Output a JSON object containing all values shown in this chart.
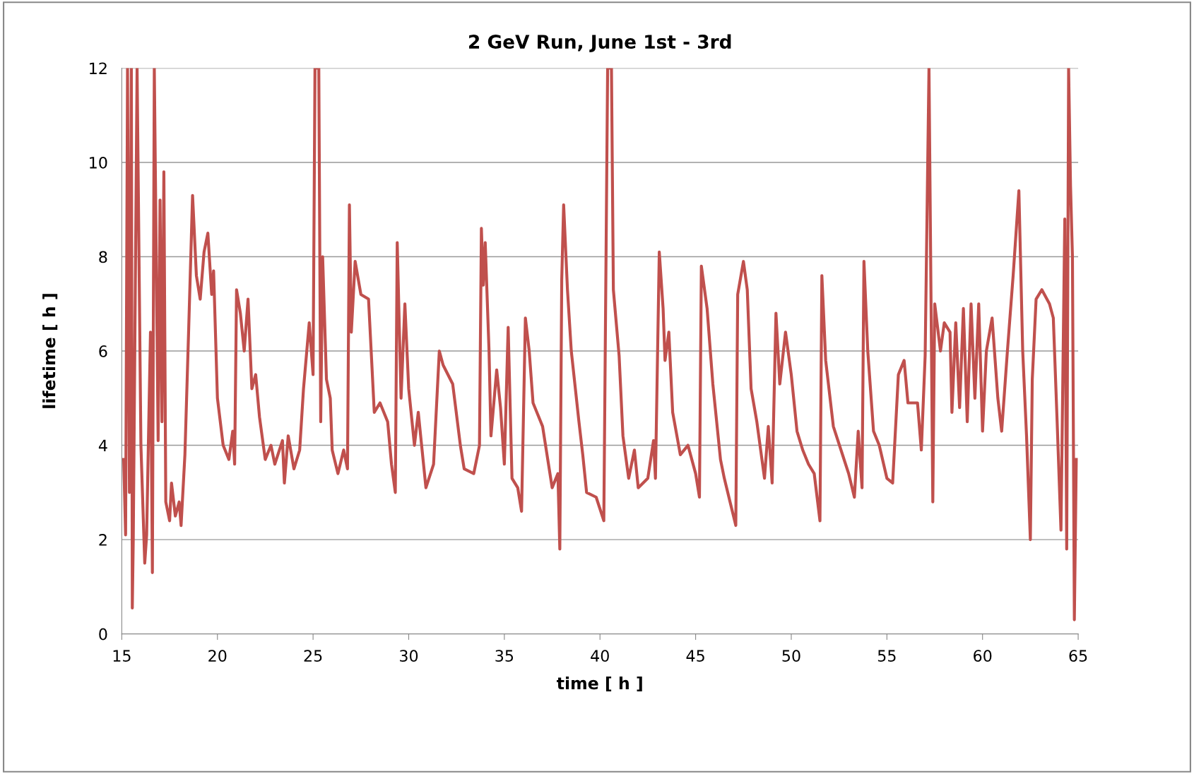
{
  "chart_data": {
    "type": "line",
    "title": "2 GeV Run, June 1st - 3rd",
    "xlabel": "time [ h ]",
    "ylabel": "lifetime [ h ]",
    "xlim": [
      15,
      65
    ],
    "ylim": [
      0,
      12
    ],
    "xticks": [
      15,
      20,
      25,
      30,
      35,
      40,
      45,
      50,
      55,
      60,
      65
    ],
    "yticks": [
      0,
      2,
      4,
      6,
      8,
      10,
      12
    ],
    "grid": "y",
    "legend": false,
    "marker": "none",
    "line_style": "solid",
    "series": [
      {
        "color": "#c0504d",
        "x": [
          15.1,
          15.2,
          15.3,
          15.4,
          15.5,
          15.55,
          15.6,
          15.8,
          16.0,
          16.2,
          16.3,
          16.5,
          16.6,
          16.7,
          16.9,
          17.0,
          17.1,
          17.2,
          17.3,
          17.5,
          17.6,
          17.8,
          18.0,
          18.1,
          18.3,
          18.5,
          18.7,
          18.9,
          19.1,
          19.3,
          19.5,
          19.7,
          19.8,
          20.0,
          20.3,
          20.6,
          20.8,
          20.9,
          21.0,
          21.2,
          21.4,
          21.6,
          21.8,
          22.0,
          22.2,
          22.5,
          22.8,
          23.0,
          23.4,
          23.5,
          23.7,
          24.0,
          24.3,
          24.5,
          24.8,
          25.0,
          25.1,
          25.3,
          25.4,
          25.5,
          25.7,
          25.9,
          26.0,
          26.3,
          26.6,
          26.8,
          26.9,
          27.0,
          27.2,
          27.5,
          27.9,
          28.0,
          28.2,
          28.5,
          28.9,
          29.1,
          29.3,
          29.4,
          29.6,
          29.8,
          30.0,
          30.3,
          30.5,
          30.7,
          30.9,
          31.3,
          31.6,
          31.8,
          32.3,
          32.7,
          32.9,
          33.4,
          33.7,
          33.8,
          33.9,
          34.0,
          34.2,
          34.3,
          34.6,
          34.8,
          35.0,
          35.2,
          35.4,
          35.7,
          35.9,
          36.1,
          36.3,
          36.5,
          37.0,
          37.5,
          37.8,
          37.9,
          38.0,
          38.1,
          38.3,
          38.5,
          38.9,
          39.1,
          39.3,
          39.8,
          40.2,
          40.4,
          40.6,
          40.7,
          41.0,
          41.2,
          41.5,
          41.8,
          42.0,
          42.5,
          42.8,
          42.9,
          43.1,
          43.3,
          43.4,
          43.6,
          43.8,
          44.2,
          44.6,
          45.0,
          45.2,
          45.3,
          45.6,
          45.9,
          46.3,
          46.5,
          46.8,
          47.1,
          47.2,
          47.5,
          47.7,
          47.9,
          48.2,
          48.6,
          48.8,
          49.0,
          49.2,
          49.4,
          49.7,
          50.0,
          50.3,
          50.6,
          50.9,
          51.2,
          51.5,
          51.6,
          51.8,
          52.2,
          52.6,
          53.0,
          53.3,
          53.5,
          53.7,
          53.8,
          54.0,
          54.3,
          54.6,
          55.0,
          55.3,
          55.6,
          55.9,
          56.1,
          56.6,
          56.8,
          57.0,
          57.2,
          57.4,
          57.5,
          57.8,
          58.0,
          58.3,
          58.4,
          58.6,
          58.8,
          59.0,
          59.2,
          59.4,
          59.6,
          59.8,
          60.0,
          60.2,
          60.5,
          60.8,
          61.0,
          61.3,
          61.6,
          61.9,
          62.1,
          62.3,
          62.5,
          62.6,
          62.8,
          63.1,
          63.5,
          63.7,
          63.9,
          64.1,
          64.3,
          64.4,
          64.5,
          64.6,
          64.7,
          64.8,
          64.9
        ],
        "values": [
          3.7,
          2.1,
          12,
          3.0,
          12,
          0.55,
          2.0,
          12,
          4.0,
          1.5,
          2.1,
          6.4,
          1.3,
          12,
          4.1,
          9.2,
          4.5,
          9.8,
          2.8,
          2.4,
          3.2,
          2.5,
          2.8,
          2.3,
          3.8,
          6.5,
          9.3,
          7.6,
          7.1,
          8.1,
          8.5,
          7.2,
          7.7,
          5.0,
          4.0,
          3.7,
          4.3,
          3.6,
          7.3,
          6.8,
          6.0,
          7.1,
          5.2,
          5.5,
          4.6,
          3.7,
          4.0,
          3.6,
          4.1,
          3.2,
          4.2,
          3.5,
          3.9,
          5.2,
          6.6,
          5.5,
          12,
          12,
          4.5,
          8.0,
          5.4,
          5.0,
          3.9,
          3.4,
          3.9,
          3.5,
          9.1,
          6.4,
          7.9,
          7.2,
          7.1,
          6.3,
          4.7,
          4.9,
          4.5,
          3.6,
          3.0,
          8.3,
          5.0,
          7.0,
          5.2,
          4.0,
          4.7,
          3.9,
          3.1,
          3.6,
          6.0,
          5.7,
          5.3,
          4.0,
          3.5,
          3.4,
          4.0,
          8.6,
          7.4,
          8.3,
          6.0,
          4.2,
          5.6,
          4.8,
          3.6,
          6.5,
          3.3,
          3.1,
          2.6,
          6.7,
          6.0,
          4.9,
          4.4,
          3.1,
          3.4,
          1.8,
          7.5,
          9.1,
          7.3,
          6.0,
          4.5,
          3.8,
          3.0,
          2.9,
          2.4,
          12,
          12,
          7.3,
          5.9,
          4.2,
          3.3,
          3.9,
          3.1,
          3.3,
          4.1,
          3.3,
          8.1,
          6.9,
          5.8,
          6.4,
          4.7,
          3.8,
          4.0,
          3.4,
          2.9,
          7.8,
          6.9,
          5.3,
          3.7,
          3.3,
          2.8,
          2.3,
          7.2,
          7.9,
          7.3,
          5.2,
          4.5,
          3.3,
          4.4,
          3.2,
          6.8,
          5.3,
          6.4,
          5.5,
          4.3,
          3.9,
          3.6,
          3.4,
          2.4,
          7.6,
          5.8,
          4.4,
          3.9,
          3.4,
          2.9,
          4.3,
          3.1,
          7.9,
          6.0,
          4.3,
          4.0,
          3.3,
          3.2,
          5.5,
          5.8,
          4.9,
          4.9,
          3.9,
          5.9,
          12,
          2.8,
          7.0,
          6.0,
          6.6,
          6.4,
          4.7,
          6.6,
          4.8,
          6.9,
          4.5,
          7.0,
          5.0,
          7.0,
          4.3,
          6.0,
          6.7,
          5.0,
          4.3,
          6.0,
          7.6,
          9.4,
          6.0,
          4.2,
          2.0,
          5.4,
          7.1,
          7.3,
          7.0,
          6.7,
          4.5,
          2.2,
          8.8,
          1.8,
          12,
          9.5,
          8.0,
          0.3,
          3.7
        ]
      }
    ]
  }
}
